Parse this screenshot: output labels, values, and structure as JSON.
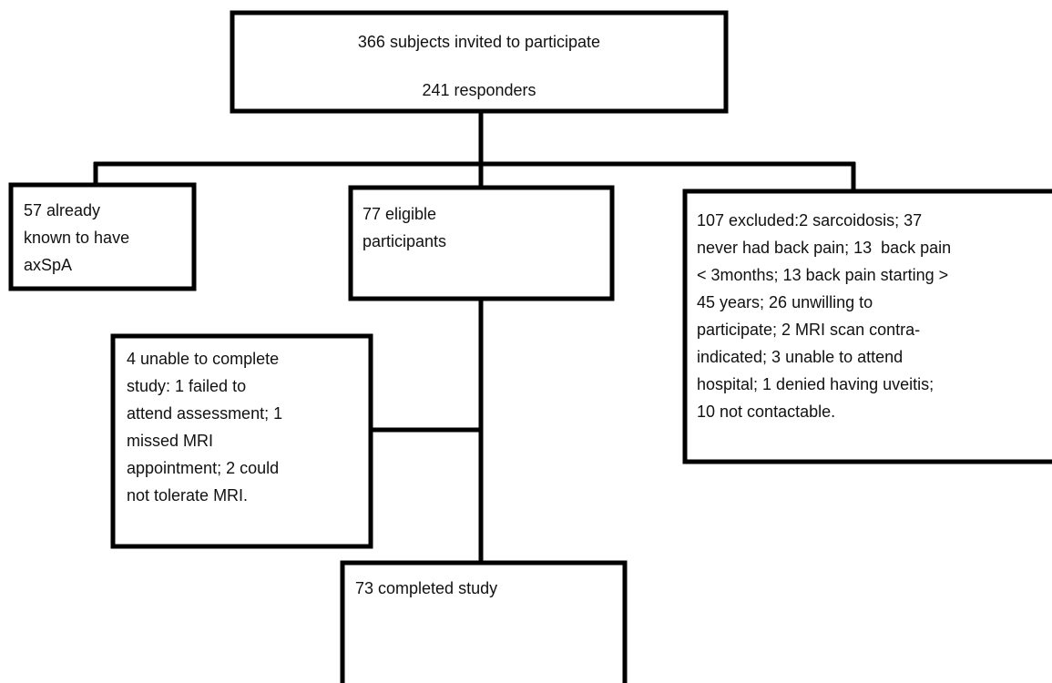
{
  "nodes": [
    {
      "lines": [
        "366 subjects invited to participate",
        "241 responders"
      ]
    },
    {
      "lines": [
        "57 already",
        "known to have",
        "axSpA"
      ]
    },
    {
      "lines": [
        "77 eligible",
        "participants"
      ]
    },
    {
      "lines": [
        "107 excluded:2 sarcoidosis; 37",
        "never had back pain; 13  back pain",
        "< 3months; 13 back pain starting >",
        "45 years; 26 unwilling to",
        "participate; 2 MRI scan contra-",
        "indicated; 3 unable to attend",
        "hospital; 1 denied having uveitis;",
        "10 not contactable."
      ]
    },
    {
      "lines": [
        "4 unable to complete",
        "study: 1 failed to",
        "attend assessment; 1",
        "missed MRI",
        "appointment; 2 could",
        "not tolerate MRI."
      ]
    },
    {
      "lines": [
        "73 completed study"
      ]
    }
  ]
}
